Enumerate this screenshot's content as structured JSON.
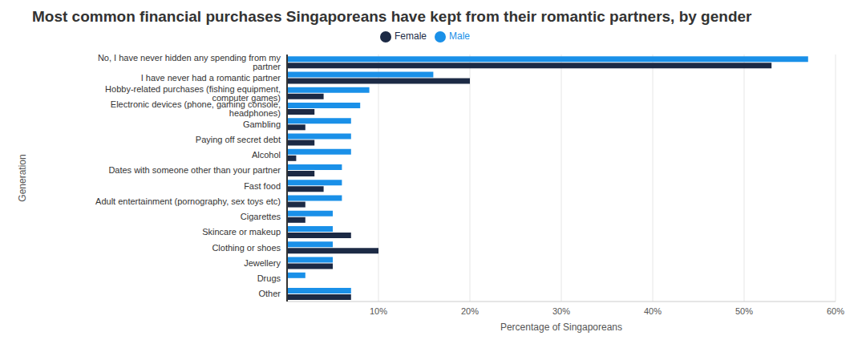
{
  "chart_data": {
    "type": "bar",
    "title": "Most common financial purchases Singaporeans have kept from their romantic partners, by gender",
    "orientation": "horizontal",
    "x_label": "Percentage of Singaporeans",
    "y_label": "Generation",
    "categories": [
      "No, I have never hidden any spending from my partner",
      "I have never had a romantic partner",
      "Hobby-related purchases (fishing equipment, computer games)",
      "Electronic devices (phone, gaming console, headphones)",
      "Gambling",
      "Paying off secret debt",
      "Alcohol",
      "Dates with someone other than your partner",
      "Fast food",
      "Adult entertainment (pornography, sex toys etc)",
      "Cigarettes",
      "Skincare or makeup",
      "Clothing or shoes",
      "Jewellery",
      "Drugs",
      "Other"
    ],
    "series": [
      {
        "name": "Male",
        "color": "#1a90e8",
        "values": [
          57,
          16,
          9,
          8,
          7,
          7,
          7,
          6,
          6,
          6,
          5,
          5,
          5,
          5,
          2,
          7
        ]
      },
      {
        "name": "Female",
        "color": "#1c2a45",
        "values": [
          53,
          20,
          4,
          3,
          2,
          3,
          1,
          3,
          4,
          2,
          2,
          7,
          10,
          5,
          0,
          7
        ]
      }
    ],
    "xlim": [
      0,
      60
    ],
    "xticks": [
      {
        "value": 10,
        "label": "10%"
      },
      {
        "value": 20,
        "label": "20%"
      },
      {
        "value": 30,
        "label": "30%"
      },
      {
        "value": 40,
        "label": "40%"
      },
      {
        "value": 50,
        "label": "50%"
      },
      {
        "value": 60,
        "label": "60%"
      }
    ],
    "grid": true,
    "legend": "top"
  }
}
